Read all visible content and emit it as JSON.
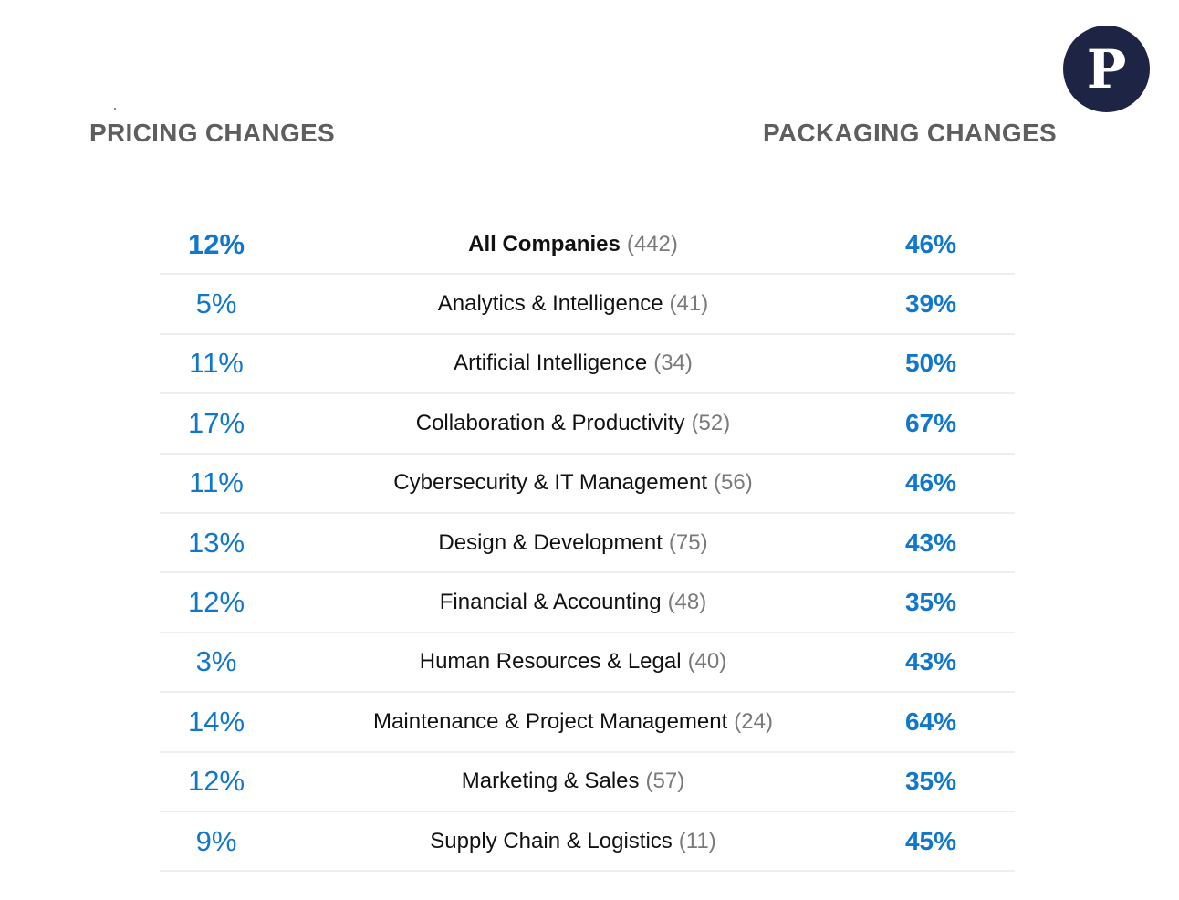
{
  "logo": {
    "letter": "P",
    "bg_color": "#1e2444"
  },
  "headers": {
    "pricing": "PRICING CHANGES",
    "packaging": "PACKAGING CHANGES",
    "color": "#5e5e5e"
  },
  "colors": {
    "value_blue": "#1177cc"
  },
  "chart_data": {
    "type": "table",
    "columns": [
      "PRICING CHANGES",
      "",
      "PACKAGING CHANGES"
    ],
    "rows": [
      {
        "pricing": "12%",
        "category": "All Companies",
        "count": "(442)",
        "packaging": "46%"
      },
      {
        "pricing": "5%",
        "category": "Analytics & Intelligence",
        "count": "(41)",
        "packaging": "39%"
      },
      {
        "pricing": "11%",
        "category": "Artificial Intelligence",
        "count": "(34)",
        "packaging": "50%"
      },
      {
        "pricing": "17%",
        "category": "Collaboration & Productivity",
        "count": "(52)",
        "packaging": "67%"
      },
      {
        "pricing": "11%",
        "category": "Cybersecurity & IT Management",
        "count": "(56)",
        "packaging": "46%"
      },
      {
        "pricing": "13%",
        "category": "Design & Development",
        "count": "(75)",
        "packaging": "43%"
      },
      {
        "pricing": "12%",
        "category": "Financial & Accounting",
        "count": "(48)",
        "packaging": "35%"
      },
      {
        "pricing": "3%",
        "category": "Human Resources & Legal",
        "count": "(40)",
        "packaging": "43%"
      },
      {
        "pricing": "14%",
        "category": "Maintenance & Project Management",
        "count": "(24)",
        "packaging": "64%"
      },
      {
        "pricing": "12%",
        "category": "Marketing & Sales",
        "count": "(57)",
        "packaging": "35%"
      },
      {
        "pricing": "9%",
        "category": "Supply Chain & Logistics",
        "count": "(11)",
        "packaging": "45%"
      }
    ]
  }
}
